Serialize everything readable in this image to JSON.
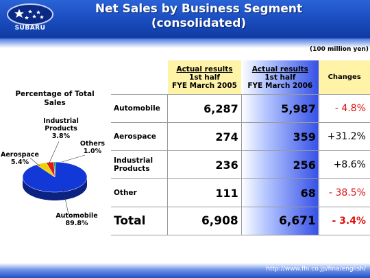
{
  "header": {
    "logo_text": "SUBARU",
    "title_line1": "Net Sales by Business Segment",
    "title_line2": "(consolidated)"
  },
  "units": "(100 million yen)",
  "pie": {
    "title": "Percentage of Total Sales"
  },
  "chart_data": [
    {
      "type": "pie",
      "title": "Percentage of Total Sales",
      "slices": [
        {
          "name": "Automobile",
          "value": 89.8,
          "label": "89.8%",
          "color": "#1238d8"
        },
        {
          "name": "Aerospace",
          "value": 5.4,
          "label": "5.4%",
          "color": "#f0d000"
        },
        {
          "name": "Industrial Products",
          "value": 3.8,
          "label": "3.8%",
          "color": "#d91a1a"
        },
        {
          "name": "Others",
          "value": 1.0,
          "label": "1.0%",
          "color": "#1aa24a"
        }
      ],
      "legend": "none"
    },
    {
      "type": "table",
      "columns": {
        "fye2005": {
          "line1": "Actual results",
          "line2": "1st half",
          "line3": "FYE March 2005"
        },
        "fye2006": {
          "line1": "Actual results",
          "line2": "1st half",
          "line3": "FYE March 2006"
        },
        "changes": "Changes"
      },
      "rows": [
        {
          "label": "Automobile",
          "fye2005": "6,287",
          "fye2006": "5,987",
          "change": "- 4.8%"
        },
        {
          "label": "Aerospace",
          "fye2005": "274",
          "fye2006": "359",
          "change": "+31.2%"
        },
        {
          "label": "Industrial Products",
          "fye2005": "236",
          "fye2006": "256",
          "change": "+8.6%"
        },
        {
          "label": "Other",
          "fye2005": "111",
          "fye2006": "68",
          "change": "- 38.5%"
        },
        {
          "label": "Total",
          "fye2005": "6,908",
          "fye2006": "6,671",
          "change": "- 3.4%"
        }
      ]
    }
  ],
  "footer": {
    "url": "http://www.fhi.co.jp/fina/english/"
  }
}
